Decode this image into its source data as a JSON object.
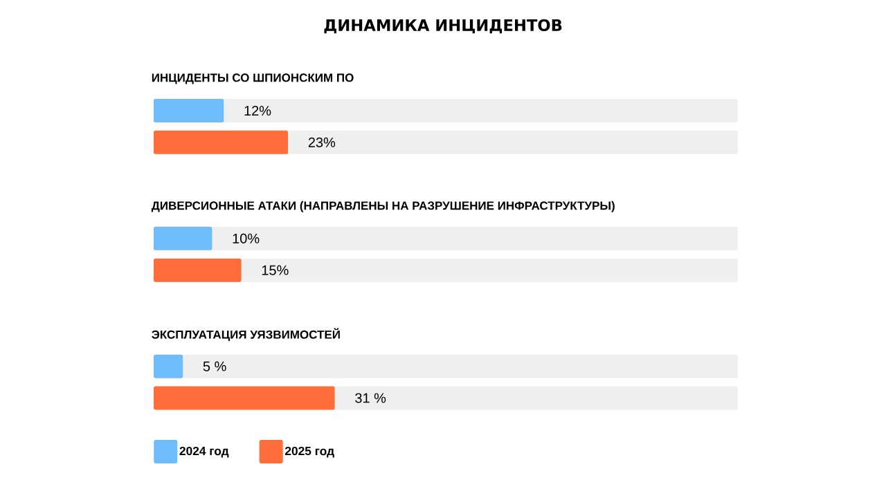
{
  "chart_data": {
    "type": "bar",
    "orientation": "horizontal",
    "title": "ДИНАМИКА ИНЦИДЕНТОВ",
    "categories": [
      "ИНЦИДЕНТЫ СО ШПИОНСКИМ ПО",
      "ДИВЕРСИОННЫЕ АТАКИ (НАПРАВЛЕНЫ НА РАЗРУШЕНИЕ ИНФРАСТРУКТУРЫ)",
      "ЭКСПЛУАТАЦИЯ УЯЗВИМОСТЕЙ"
    ],
    "series": [
      {
        "name": "2024 год",
        "color": "#6ebcf9",
        "values": [
          12,
          10,
          5
        ],
        "value_labels": [
          "12%",
          "10%",
          "5 %"
        ]
      },
      {
        "name": "2025 год",
        "color": "#ff6d3a",
        "values": [
          23,
          15,
          31
        ],
        "value_labels": [
          "23%",
          "15%",
          "31 %"
        ]
      }
    ],
    "xlim": [
      0,
      100
    ],
    "legend": "bottom left"
  }
}
